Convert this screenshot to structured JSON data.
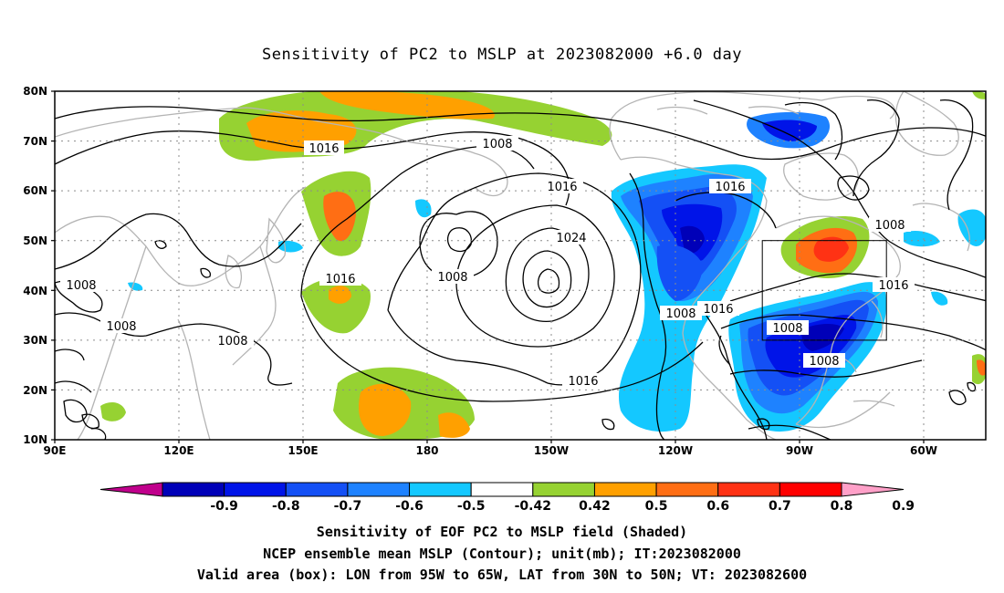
{
  "title": "Sensitivity of PC2 to MSLP at 2023082000 +6.0 day",
  "map": {
    "lon_labels": [
      "90E",
      "120E",
      "150E",
      "180",
      "150W",
      "120W",
      "90W",
      "60W"
    ],
    "lat_labels": [
      "80N",
      "70N",
      "60N",
      "50N",
      "40N",
      "30N",
      "20N",
      "10N"
    ],
    "valid_box": {
      "lon_from": "95W",
      "lon_to": "65W",
      "lat_from": "30N",
      "lat_to": "50N"
    },
    "contour_labels": [
      "1016",
      "1008",
      "1016",
      "1016",
      "1024",
      "1008",
      "1016",
      "1008",
      "1008",
      "1008",
      "1008",
      "1016",
      "1008",
      "1016",
      "1008",
      "1008",
      "1016"
    ],
    "colors": {
      "land_outline": "#b4b4b4",
      "contour": "#000000",
      "grid": "#8c8c8c"
    }
  },
  "colorbar": {
    "labels": [
      "-0.9",
      "-0.8",
      "-0.7",
      "-0.6",
      "-0.5",
      "-0.42",
      "0.42",
      "0.5",
      "0.6",
      "0.7",
      "0.8",
      "0.9"
    ],
    "colors": [
      "#c0008c",
      "#0000b8",
      "#0014e8",
      "#1450f5",
      "#1e82ff",
      "#14c8ff",
      "#ffffff",
      "#96d232",
      "#ffa000",
      "#ff6e14",
      "#ff3214",
      "#ff0000",
      "#ffa0c8"
    ]
  },
  "captions": [
    "Sensitivity of EOF PC2 to MSLP field (Shaded)",
    "NCEP ensemble mean MSLP (Contour); unit(mb); IT:2023082000",
    "Valid area (box): LON from 95W to 65W, LAT from 30N to 50N; VT: 2023082600"
  ]
}
